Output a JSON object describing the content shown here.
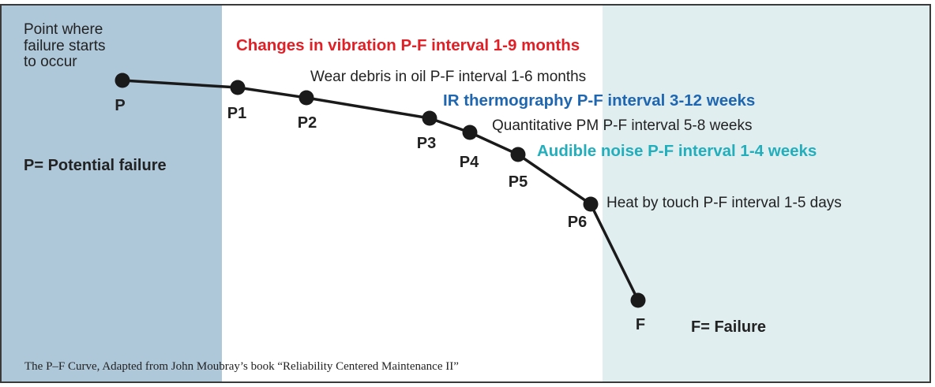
{
  "colors": {
    "left_zone": "#aec8da",
    "middle_zone": "#ffffff",
    "right_zone": "#e0eef0",
    "frame": "#3a3a3a",
    "curve": "#1a1a1a",
    "point": "#1a1a1a",
    "red": "#e11f26",
    "blue": "#1f66b1",
    "teal": "#23aebc",
    "text": "#222222"
  },
  "diagram": {
    "start_note": [
      "Point where",
      "failure starts",
      "to occur"
    ],
    "potential_failure": "P= Potential failure",
    "failure": "F= Failure",
    "caption": "The P–F Curve, Adapted from John Moubray’s book “Reliability Centered Maintenance II”"
  },
  "points": [
    {
      "label": "P"
    },
    {
      "label": "P1"
    },
    {
      "label": "P2"
    },
    {
      "label": "P3"
    },
    {
      "label": "P4"
    },
    {
      "label": "P5"
    },
    {
      "label": "P6"
    },
    {
      "label": "F"
    }
  ],
  "intervals": [
    {
      "text": "Changes in vibration P-F interval 1-9 months",
      "color": "red",
      "bold": true
    },
    {
      "text": "Wear debris in oil P-F interval 1-6 months",
      "color": "text",
      "bold": false
    },
    {
      "text": "IR thermography P-F interval 3-12 weeks",
      "color": "blue",
      "bold": true
    },
    {
      "text": "Quantitative PM P-F interval 5-8 weeks",
      "color": "text",
      "bold": false
    },
    {
      "text": "Audible noise P-F interval 1-4 weeks",
      "color": "teal",
      "bold": true
    },
    {
      "text": "Heat by touch P-F interval 1-5 days",
      "color": "text",
      "bold": false
    }
  ]
}
